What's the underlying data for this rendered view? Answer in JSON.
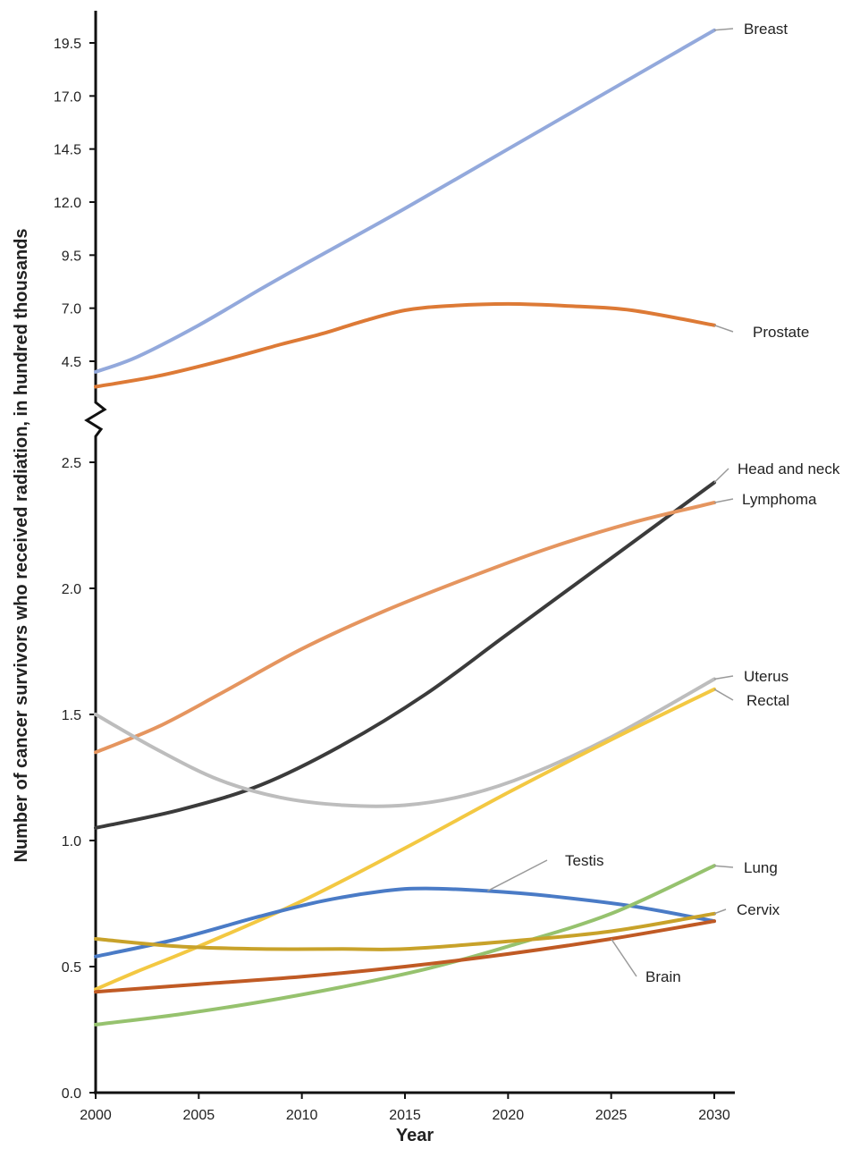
{
  "chart_data": {
    "type": "line",
    "xlabel": "Year",
    "ylabel": "Number of cancer survivors who received radiation, in hundred thousands",
    "x_ticks": [
      "2000",
      "2005",
      "2010",
      "2015",
      "2020",
      "2025",
      "2030"
    ],
    "x_range": [
      2000,
      2030
    ],
    "y_axis_broken": true,
    "y_ticks_lower": [
      "0.0",
      "0.5",
      "1.0",
      "1.5",
      "2.0",
      "2.5"
    ],
    "y_range_lower": [
      0,
      2.5
    ],
    "y_ticks_upper": [
      "4.5",
      "7.0",
      "9.5",
      "12.0",
      "14.5",
      "17.0",
      "19.5"
    ],
    "y_range_upper": [
      4.5,
      19.5
    ],
    "grid": false,
    "legend": "direct labels at line ends",
    "series": [
      {
        "name": "Breast",
        "color": "#93a9dc",
        "segment": "upper",
        "x": [
          2000,
          2002,
          2005,
          2008,
          2010,
          2015,
          2020,
          2025,
          2030
        ],
        "y": [
          4.0,
          4.7,
          6.2,
          7.9,
          9.0,
          11.7,
          14.5,
          17.3,
          20.1
        ]
      },
      {
        "name": "Prostate",
        "color": "#dd7a36",
        "segment": "upper",
        "x": [
          2000,
          2003,
          2006,
          2009,
          2011,
          2013,
          2015,
          2017,
          2020,
          2023,
          2026,
          2030
        ],
        "y": [
          3.3,
          3.8,
          4.5,
          5.3,
          5.8,
          6.4,
          6.9,
          7.1,
          7.2,
          7.1,
          6.9,
          6.2
        ]
      },
      {
        "name": "Head and neck",
        "color": "#3b3b3b",
        "segment": "lower",
        "x": [
          2000,
          2004,
          2008,
          2012,
          2016,
          2020,
          2025,
          2030
        ],
        "y": [
          1.05,
          1.12,
          1.22,
          1.38,
          1.58,
          1.82,
          2.12,
          2.42
        ]
      },
      {
        "name": "Lymphoma",
        "color": "#e5955f",
        "segment": "lower",
        "x": [
          2000,
          2003,
          2006,
          2010,
          2014,
          2018,
          2022,
          2026,
          2030
        ],
        "y": [
          1.35,
          1.45,
          1.58,
          1.76,
          1.91,
          2.04,
          2.16,
          2.26,
          2.34
        ]
      },
      {
        "name": "Uterus",
        "color": "#bdbdbd",
        "segment": "lower",
        "x": [
          2000,
          2003,
          2006,
          2009,
          2012,
          2015,
          2018,
          2021,
          2025,
          2030
        ],
        "y": [
          1.5,
          1.36,
          1.24,
          1.17,
          1.14,
          1.14,
          1.18,
          1.26,
          1.41,
          1.64
        ]
      },
      {
        "name": "Rectal",
        "color": "#f3c842",
        "segment": "lower",
        "x": [
          2000,
          2002,
          2005,
          2010,
          2015,
          2020,
          2025,
          2030
        ],
        "y": [
          0.41,
          0.48,
          0.58,
          0.76,
          0.97,
          1.19,
          1.4,
          1.6
        ]
      },
      {
        "name": "Testis",
        "color": "#4a7bc6",
        "segment": "lower",
        "x": [
          2000,
          2004,
          2008,
          2011,
          2014,
          2016,
          2019,
          2022,
          2026,
          2030
        ],
        "y": [
          0.54,
          0.61,
          0.7,
          0.76,
          0.8,
          0.81,
          0.8,
          0.78,
          0.74,
          0.68
        ]
      },
      {
        "name": "Lung",
        "color": "#96c26e",
        "segment": "lower",
        "x": [
          2000,
          2004,
          2008,
          2012,
          2016,
          2020,
          2025,
          2030
        ],
        "y": [
          0.27,
          0.31,
          0.36,
          0.42,
          0.49,
          0.58,
          0.71,
          0.9
        ]
      },
      {
        "name": "Cervix",
        "color": "#c8a22a",
        "segment": "lower",
        "x": [
          2000,
          2004,
          2008,
          2012,
          2015,
          2020,
          2025,
          2030
        ],
        "y": [
          0.61,
          0.58,
          0.57,
          0.57,
          0.57,
          0.6,
          0.64,
          0.71
        ]
      },
      {
        "name": "Brain",
        "color": "#c05a24",
        "segment": "lower",
        "x": [
          2000,
          2005,
          2010,
          2015,
          2020,
          2025,
          2030
        ],
        "y": [
          0.4,
          0.43,
          0.46,
          0.5,
          0.55,
          0.61,
          0.68
        ]
      }
    ]
  }
}
